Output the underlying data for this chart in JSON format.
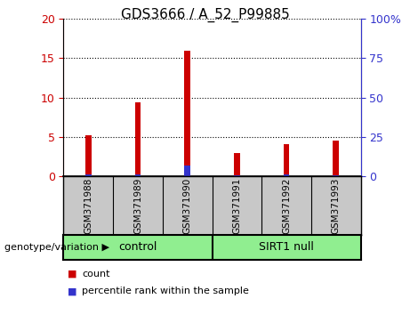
{
  "title": "GDS3666 / A_52_P99885",
  "samples": [
    "GSM371988",
    "GSM371989",
    "GSM371990",
    "GSM371991",
    "GSM371992",
    "GSM371993"
  ],
  "count_values": [
    5.2,
    9.4,
    16.0,
    3.0,
    4.1,
    4.5
  ],
  "percentile_values": [
    1.1,
    1.2,
    6.7,
    0.5,
    1.0,
    0.6
  ],
  "left_ylim": [
    0,
    20
  ],
  "right_ylim": [
    0,
    100
  ],
  "left_yticks": [
    0,
    5,
    10,
    15,
    20
  ],
  "right_yticks": [
    0,
    25,
    50,
    75,
    100
  ],
  "right_yticklabels": [
    "0",
    "25",
    "50",
    "75",
    "100%"
  ],
  "bar_color_red": "#cc0000",
  "bar_color_blue": "#3333cc",
  "bar_width": 0.12,
  "groups": [
    {
      "label": "control",
      "span": [
        0,
        2
      ]
    },
    {
      "label": "SIRT1 null",
      "span": [
        3,
        5
      ]
    }
  ],
  "group_label_prefix": "genotype/variation",
  "legend_items": [
    {
      "label": "count",
      "color": "#cc0000"
    },
    {
      "label": "percentile rank within the sample",
      "color": "#3333cc"
    }
  ],
  "tick_label_color_left": "#cc0000",
  "tick_label_color_right": "#3333cc",
  "grid_style": "dotted",
  "plot_bg_color": "#ffffff",
  "gray_box_color": "#c8c8c8",
  "green_box_color": "#90ee90",
  "sample_label_fontsize": 7.5,
  "group_label_fontsize": 9,
  "title_fontsize": 11
}
